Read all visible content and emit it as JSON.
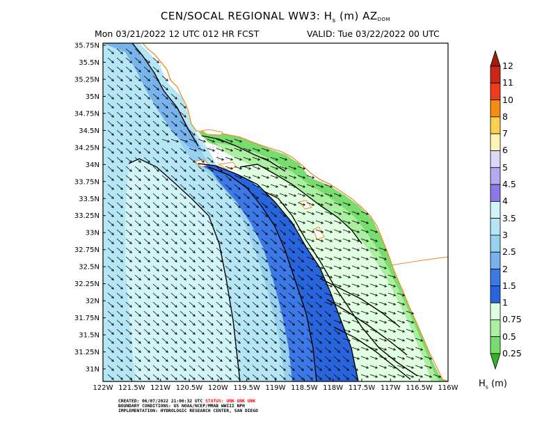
{
  "title_prefix": "CEN/SOCAL REGIONAL WW3: H",
  "title_sub": "s",
  "title_mid": " (m) AZ",
  "title_small": "DOM",
  "subtitle_left": "Mon 03/21/2022 12 UTC 012 HR FCST",
  "subtitle_right": "VALID: Tue 03/22/2022 00 UTC",
  "lat_labels": [
    "35.75N",
    "35.5N",
    "35.25N",
    "35N",
    "34.75N",
    "34.5N",
    "34.25N",
    "34N",
    "33.75N",
    "33.5N",
    "33.25N",
    "33N",
    "32.75N",
    "32.5N",
    "32.25N",
    "32N",
    "31.75N",
    "31.5N",
    "31.25N",
    "31N"
  ],
  "lon_labels": [
    "122W",
    "121.5W",
    "121W",
    "120.5W",
    "120W",
    "119.5W",
    "119W",
    "118.5W",
    "118W",
    "117.5W",
    "117W",
    "116.5W",
    "116W"
  ],
  "colorbar": {
    "levels": [
      "12",
      "11",
      "10",
      "8",
      "7",
      "6",
      "5",
      "4.5",
      "4",
      "3.5",
      "3",
      "2.5",
      "2",
      "1.5",
      "1",
      "0.75",
      "0.5",
      "0.25"
    ],
    "colors": [
      "#c82814",
      "#f03c1e",
      "#f58c14",
      "#fad250",
      "#fff5b4",
      "#dcd7f5",
      "#b4aaf0",
      "#8c78e6",
      "#d2f5fa",
      "#b4e6f5",
      "#96d2f0",
      "#78b4eb",
      "#3c78e6",
      "#2864dc",
      "#e1ffe1",
      "#aaf0a0",
      "#78dc6e",
      "#46c83c"
    ],
    "top_color": "#a01e0a",
    "bottom_color": "#32b428"
  },
  "unit_prefix": "H",
  "unit_sub": "s",
  "unit_suffix": " (m)",
  "footer": {
    "created_prefix": "CREATED: 06/07/2022 21:06:32 UTC ",
    "status": "STATUS: UNK UNK UNK",
    "boundary": "BOUNDARY CONDITIONS: US NOAA/NCEP/MMAB WWIII NPH",
    "implementation": "IMPLEMENTATION: HYDROLOGIC RESEARCH CENTER, SAN DIEGO"
  }
}
